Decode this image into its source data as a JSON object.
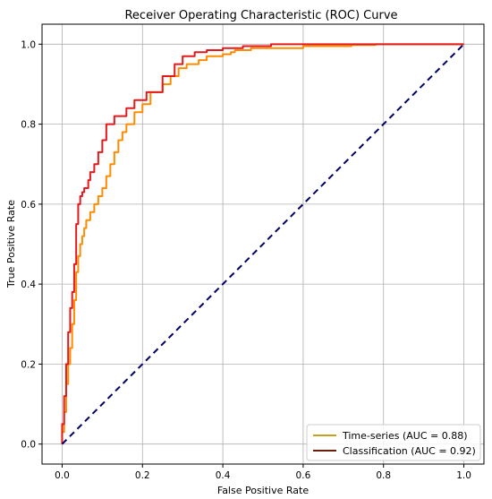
{
  "chart_data": {
    "type": "line",
    "title": "Receiver Operating Characteristic (ROC) Curve",
    "xlabel": "False Positive Rate",
    "ylabel": "True Positive Rate",
    "xlim": [
      -0.05,
      1.05
    ],
    "ylim": [
      -0.05,
      1.05
    ],
    "xticks": [
      0.0,
      0.2,
      0.4,
      0.6,
      0.8,
      1.0
    ],
    "yticks": [
      0.0,
      0.2,
      0.4,
      0.6,
      0.8,
      1.0
    ],
    "xtick_labels": [
      "0.0",
      "0.2",
      "0.4",
      "0.6",
      "0.8",
      "1.0"
    ],
    "ytick_labels": [
      "0.0",
      "0.2",
      "0.4",
      "0.6",
      "0.8",
      "1.0"
    ],
    "grid": true,
    "legend_position": "bottom-right",
    "series": [
      {
        "name": "Time-series (AUC = 0.88)",
        "color": "#ff8c00",
        "legend_color": "#c8a020",
        "x": [
          0.0,
          0.0,
          0.005,
          0.005,
          0.01,
          0.01,
          0.015,
          0.015,
          0.02,
          0.02,
          0.025,
          0.025,
          0.03,
          0.03,
          0.035,
          0.035,
          0.04,
          0.04,
          0.045,
          0.045,
          0.05,
          0.05,
          0.055,
          0.055,
          0.06,
          0.06,
          0.07,
          0.07,
          0.08,
          0.08,
          0.09,
          0.09,
          0.1,
          0.1,
          0.11,
          0.11,
          0.12,
          0.12,
          0.13,
          0.13,
          0.14,
          0.14,
          0.15,
          0.15,
          0.16,
          0.16,
          0.18,
          0.18,
          0.2,
          0.2,
          0.22,
          0.22,
          0.25,
          0.25,
          0.27,
          0.27,
          0.29,
          0.29,
          0.31,
          0.31,
          0.34,
          0.34,
          0.36,
          0.36,
          0.4,
          0.4,
          0.42,
          0.42,
          0.43,
          0.43,
          0.47,
          0.47,
          0.5,
          0.5,
          0.55,
          0.55,
          0.6,
          0.6,
          0.72,
          0.72,
          0.78,
          0.78,
          1.0
        ],
        "y": [
          0.0,
          0.03,
          0.03,
          0.08,
          0.08,
          0.15,
          0.15,
          0.2,
          0.2,
          0.24,
          0.24,
          0.3,
          0.3,
          0.36,
          0.36,
          0.43,
          0.43,
          0.47,
          0.47,
          0.5,
          0.5,
          0.52,
          0.52,
          0.54,
          0.54,
          0.56,
          0.56,
          0.58,
          0.58,
          0.6,
          0.6,
          0.62,
          0.62,
          0.64,
          0.64,
          0.67,
          0.67,
          0.7,
          0.7,
          0.73,
          0.73,
          0.76,
          0.76,
          0.78,
          0.78,
          0.8,
          0.8,
          0.83,
          0.83,
          0.85,
          0.85,
          0.88,
          0.88,
          0.9,
          0.9,
          0.92,
          0.92,
          0.94,
          0.94,
          0.95,
          0.95,
          0.96,
          0.96,
          0.97,
          0.97,
          0.975,
          0.975,
          0.98,
          0.98,
          0.985,
          0.985,
          0.99,
          0.99,
          0.99,
          0.99,
          0.99,
          0.99,
          0.995,
          0.995,
          0.998,
          0.998,
          1.0,
          1.0
        ]
      },
      {
        "name": "Classification (AUC = 0.92)",
        "color": "#e31a1c",
        "legend_color": "#6b1e0a",
        "x": [
          0.0,
          0.0,
          0.005,
          0.005,
          0.01,
          0.01,
          0.015,
          0.015,
          0.02,
          0.02,
          0.025,
          0.025,
          0.03,
          0.03,
          0.035,
          0.035,
          0.04,
          0.04,
          0.045,
          0.045,
          0.05,
          0.05,
          0.055,
          0.055,
          0.065,
          0.065,
          0.07,
          0.07,
          0.08,
          0.08,
          0.09,
          0.09,
          0.1,
          0.1,
          0.11,
          0.11,
          0.13,
          0.13,
          0.16,
          0.16,
          0.18,
          0.18,
          0.21,
          0.21,
          0.25,
          0.25,
          0.28,
          0.28,
          0.3,
          0.3,
          0.33,
          0.33,
          0.36,
          0.36,
          0.4,
          0.4,
          0.45,
          0.45,
          0.52,
          0.52,
          0.58,
          0.58,
          1.0
        ],
        "y": [
          0.0,
          0.05,
          0.05,
          0.12,
          0.12,
          0.2,
          0.2,
          0.28,
          0.28,
          0.34,
          0.34,
          0.38,
          0.38,
          0.45,
          0.45,
          0.55,
          0.55,
          0.6,
          0.6,
          0.62,
          0.62,
          0.63,
          0.63,
          0.64,
          0.64,
          0.66,
          0.66,
          0.68,
          0.68,
          0.7,
          0.7,
          0.73,
          0.73,
          0.76,
          0.76,
          0.8,
          0.8,
          0.82,
          0.82,
          0.84,
          0.84,
          0.86,
          0.86,
          0.88,
          0.88,
          0.92,
          0.92,
          0.95,
          0.95,
          0.97,
          0.97,
          0.98,
          0.98,
          0.985,
          0.985,
          0.99,
          0.99,
          0.995,
          0.995,
          1.0,
          1.0,
          1.0,
          1.0
        ]
      },
      {
        "name": "",
        "color": "#000066",
        "dashed": true,
        "x": [
          0.0,
          1.0
        ],
        "y": [
          0.0,
          1.0
        ]
      }
    ]
  }
}
